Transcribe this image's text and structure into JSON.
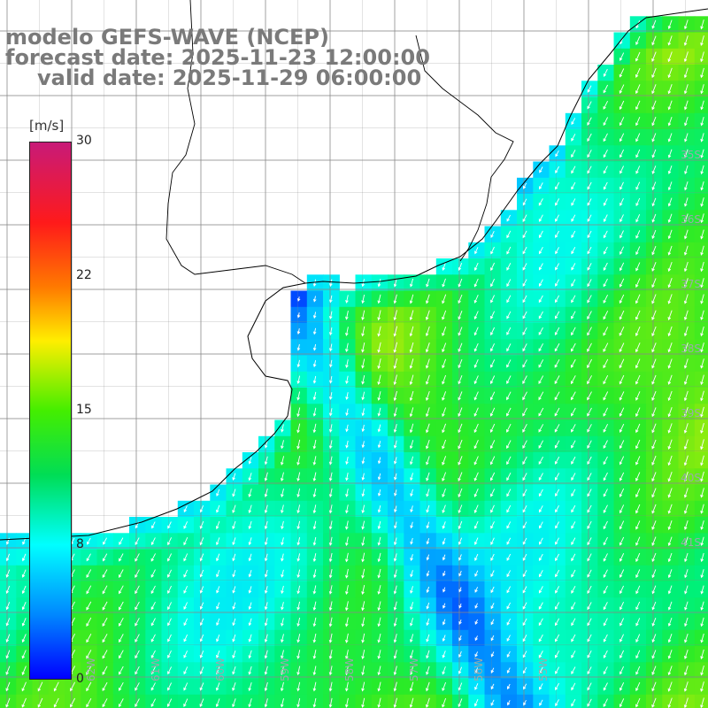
{
  "title": {
    "model": "modelo GEFS-WAVE (NCEP)",
    "forecast": "forecast date: 2025-11-23 12:00:00",
    "valid": "valid date: 2025-11-29 06:00:00"
  },
  "colorbar": {
    "unit": "[m/s]",
    "ticks": [
      "30",
      "22",
      "15",
      "8",
      "0"
    ],
    "tick_values": [
      30,
      22,
      15,
      8,
      0
    ],
    "min": 0,
    "max": 30
  },
  "lat_labels": [
    "35S",
    "36S",
    "37S",
    "38S",
    "39S",
    "40S",
    "41S"
  ],
  "lon_labels": [
    "62W",
    "61W",
    "60W",
    "59W",
    "58W",
    "57W",
    "56W",
    "55W"
  ],
  "colors": {
    "land": "#ffffff",
    "grid": "#888888",
    "coast": "#000000",
    "arrow": "#ffffff",
    "title": "#7a7a7a"
  }
}
